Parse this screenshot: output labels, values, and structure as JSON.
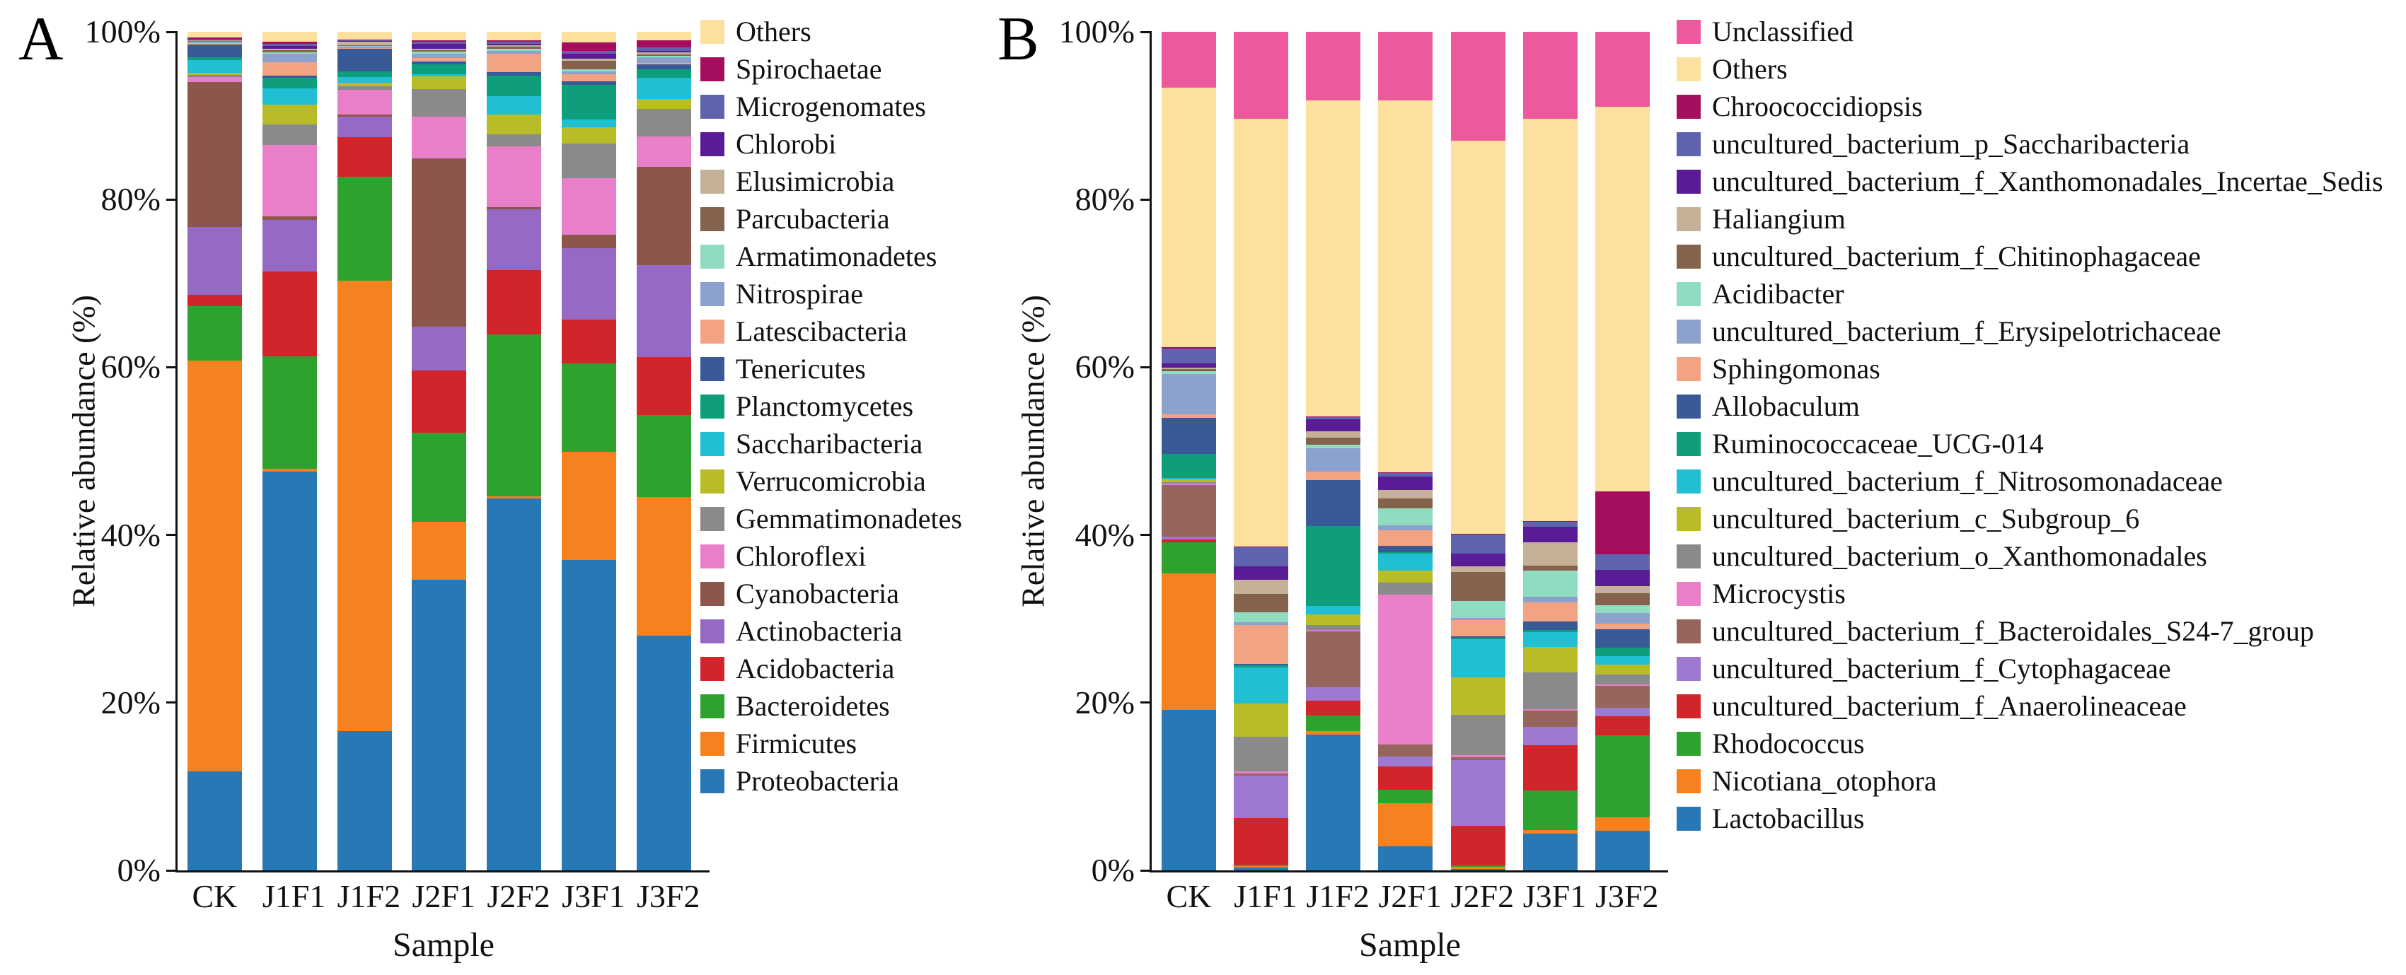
{
  "chart_data": [
    {
      "type": "bar",
      "stacked": true,
      "panel_label": "A",
      "ylabel": "Relative abundance (%)",
      "xlabel": "Sample",
      "ylim": [
        0,
        100
      ],
      "y_ticks": [
        "0%",
        "20%",
        "40%",
        "60%",
        "80%",
        "100%"
      ],
      "grid": false,
      "legend_position": "right",
      "categories": [
        "CK",
        "J1F1",
        "J1F2",
        "J2F1",
        "J2F2",
        "J3F1",
        "J3F2"
      ],
      "series": [
        {
          "name": "Proteobacteria",
          "color": "#2878B5",
          "values": [
            12,
            47.7,
            16.6,
            35,
            44.7,
            37.5,
            28.3
          ]
        },
        {
          "name": "Firmicutes",
          "color": "#F5821F",
          "values": [
            49.7,
            0.3,
            53.8,
            7,
            0.3,
            13,
            16.7
          ]
        },
        {
          "name": "Bacteroidetes",
          "color": "#2EA12E",
          "values": [
            6.6,
            13.5,
            12.4,
            10.7,
            19.4,
            10.7,
            9.9
          ]
        },
        {
          "name": "Acidobacteria",
          "color": "#D2252B",
          "values": [
            1.4,
            10.1,
            4.7,
            7.5,
            7.8,
            5.3,
            7
          ]
        },
        {
          "name": "Actinobacteria",
          "color": "#9669C4",
          "values": [
            8.2,
            6.2,
            2.5,
            5.3,
            7.3,
            8.6,
            11.1
          ]
        },
        {
          "name": "Cyanobacteria",
          "color": "#8C564B",
          "values": [
            17.6,
            0.4,
            0.2,
            20.3,
            0.2,
            1.6,
            11.8
          ]
        },
        {
          "name": "Chloroflexi",
          "color": "#E97FC9",
          "values": [
            0.6,
            8.6,
            3,
            5,
            7.3,
            6.8,
            3.7
          ]
        },
        {
          "name": "Gemmatimonadetes",
          "color": "#8A8A8A",
          "values": [
            0.2,
            2.4,
            0.4,
            3.3,
            1.5,
            4.2,
            3.3
          ]
        },
        {
          "name": "Verrucomicrobia",
          "color": "#B8BC26",
          "values": [
            0.25,
            2.4,
            0.4,
            1.5,
            2.4,
            2,
            1.2
          ]
        },
        {
          "name": "Saccharibacteria",
          "color": "#20BFD4",
          "values": [
            1.6,
            1.9,
            0.7,
            0.3,
            2.2,
            0.9,
            2.6
          ]
        },
        {
          "name": "Planctomycetes",
          "color": "#0F9E7C",
          "values": [
            0.3,
            1.3,
            0.7,
            1.2,
            2.4,
            4.2,
            1
          ]
        },
        {
          "name": "Tenericutes",
          "color": "#3A5A97",
          "values": [
            1.6,
            0.3,
            2.7,
            0.3,
            0.5,
            0.4,
            0.6
          ]
        },
        {
          "name": "Latescibacteria",
          "color": "#F2A384",
          "values": [
            0.1,
            1.6,
            0.1,
            0.5,
            2.2,
            0.9,
            0.2
          ]
        },
        {
          "name": "Nitrospirae",
          "color": "#8CA1CC",
          "values": [
            0.1,
            1,
            0.1,
            0.5,
            0.3,
            0.3,
            0.6
          ]
        },
        {
          "name": "Armatimonadetes",
          "color": "#90DCC0",
          "values": [
            0.1,
            0.2,
            0.1,
            0.2,
            0.3,
            0.3,
            0.2
          ]
        },
        {
          "name": "Parcubacteria",
          "color": "#84624C",
          "values": [
            0.1,
            0.2,
            0.1,
            0.2,
            0.2,
            1,
            0.2
          ]
        },
        {
          "name": "Elusimicrobia",
          "color": "#C4B198",
          "values": [
            0.1,
            0.2,
            0.4,
            0.2,
            0.2,
            0.3,
            0.2
          ]
        },
        {
          "name": "Chlorobi",
          "color": "#5A1C96",
          "values": [
            0.1,
            0.3,
            0.1,
            0.6,
            0.2,
            0.6,
            0.2
          ]
        },
        {
          "name": "Microgenomates",
          "color": "#5F63AE",
          "values": [
            0.1,
            0.3,
            0.1,
            0.2,
            0.2,
            0.3,
            0.4
          ]
        },
        {
          "name": "Spirochaetae",
          "color": "#A50E5D",
          "values": [
            0.1,
            0.2,
            0.1,
            0.2,
            0.2,
            1,
            0.9
          ]
        },
        {
          "name": "Others",
          "color": "#FBE19D",
          "values": [
            0.7,
            1.2,
            0.9,
            1,
            1,
            1.3,
            1
          ]
        }
      ]
    },
    {
      "type": "bar",
      "stacked": true,
      "panel_label": "B",
      "ylabel": "Relative abundance (%)",
      "xlabel": "Sample",
      "ylim": [
        0,
        100
      ],
      "y_ticks": [
        "0%",
        "20%",
        "40%",
        "60%",
        "80%",
        "100%"
      ],
      "grid": false,
      "legend_position": "right",
      "categories": [
        "CK",
        "J1F1",
        "J1F2",
        "J2F1",
        "J2F2",
        "J3F1",
        "J3F2"
      ],
      "series": [
        {
          "name": "Lactobacillus",
          "color": "#2878B5",
          "values": [
            19.3,
            0.3,
            16.3,
            2.9,
            0.2,
            4.4,
            4.8
          ]
        },
        {
          "name": "Nicotiana_otophora",
          "color": "#F5821F",
          "values": [
            16.5,
            0.2,
            0.4,
            5.1,
            0.2,
            0.45,
            1.6
          ]
        },
        {
          "name": "Rhodococcus",
          "color": "#2EA12E",
          "values": [
            3.7,
            0.2,
            1.9,
            1.6,
            0.2,
            4.8,
            9.9
          ]
        },
        {
          "name": "uncultured_bacterium_f_Anaerolineaceae",
          "color": "#D2252B",
          "values": [
            0.4,
            5.6,
            1.75,
            2.8,
            4.7,
            5.4,
            2.3
          ]
        },
        {
          "name": "uncultured_bacterium_f_Cytophagaceae",
          "color": "#9E79D2",
          "values": [
            0.3,
            5.1,
            1.6,
            1.2,
            7.9,
            2.2,
            1
          ]
        },
        {
          "name": "uncultured_bacterium_f_Bacteroidales_S24-7_group",
          "color": "#96655C",
          "values": [
            6.2,
            0.3,
            6.7,
            1.45,
            0.3,
            2,
            2.6
          ]
        },
        {
          "name": "Microcystis",
          "color": "#E97FC9",
          "values": [
            0.2,
            0.2,
            0.2,
            17.9,
            0.3,
            0.2,
            0.2
          ]
        },
        {
          "name": "uncultured_bacterium_o_Xanthomonadales",
          "color": "#8A8A8A",
          "values": [
            0.2,
            4.2,
            0.6,
            1.45,
            4.8,
            4.4,
            1.2
          ]
        },
        {
          "name": "uncultured_bacterium_c_Subgroup_6",
          "color": "#B8BC26",
          "values": [
            0.3,
            4,
            1.3,
            1.45,
            4.5,
            3.1,
            1.2
          ]
        },
        {
          "name": "uncultured_bacterium_f_Nitrosomonadaceae",
          "color": "#20BFD4",
          "values": [
            0.2,
            4.4,
            1,
            2,
            4.5,
            1.75,
            1
          ]
        },
        {
          "name": "Ruminococcaceae_UCG-014",
          "color": "#0F9E7C",
          "values": [
            2.9,
            0.2,
            9.6,
            0.2,
            0.2,
            0.3,
            1
          ]
        },
        {
          "name": "Allobaculum",
          "color": "#3A5A97",
          "values": [
            4.3,
            0.2,
            5.5,
            0.7,
            0.2,
            1,
            2.2
          ]
        },
        {
          "name": "Sphingomonas",
          "color": "#F2A384",
          "values": [
            0.4,
            4.7,
            1,
            1.9,
            1.9,
            2.3,
            0.7
          ]
        },
        {
          "name": "uncultured_bacterium_f_Erysipelotrichaceae",
          "color": "#8CA1CC",
          "values": [
            4.9,
            0.3,
            2.8,
            0.6,
            0.3,
            0.7,
            1.3
          ]
        },
        {
          "name": "Acidibacter",
          "color": "#90DCC0",
          "values": [
            0.3,
            1.2,
            0.4,
            2,
            2,
            3.1,
            0.9
          ]
        },
        {
          "name": "uncultured_bacterium_f_Chitinophagaceae",
          "color": "#84624C",
          "values": [
            0.3,
            2.2,
            0.9,
            1.2,
            3.5,
            0.6,
            1.45
          ]
        },
        {
          "name": "Haliangium",
          "color": "#C4B198",
          "values": [
            0.2,
            1.75,
            0.7,
            1,
            0.6,
            2.8,
            0.9
          ]
        },
        {
          "name": "uncultured_bacterium_f_Xanthomonadales_Incertae_Sedis",
          "color": "#5A1C96",
          "values": [
            0.5,
            1.6,
            1.45,
            1.6,
            1.6,
            1.9,
            1.9
          ]
        },
        {
          "name": "uncultured_bacterium_p_Saccharibacteria",
          "color": "#5F63AE",
          "values": [
            1.8,
            2.3,
            0.3,
            0.4,
            2.2,
            0.6,
            1.9
          ]
        },
        {
          "name": "Chroococcidiopsis",
          "color": "#A50E5D",
          "values": [
            0.1,
            0.1,
            0.1,
            0.1,
            0.1,
            0.1,
            7.6
          ]
        },
        {
          "name": "Others",
          "color": "#FBE19D",
          "values": [
            31.3,
            51.5,
            37.9,
            44.4,
            47,
            48.4,
            46.3
          ]
        },
        {
          "name": "Unclassified",
          "color": "#EC5A9D",
          "values": [
            6.7,
            10.5,
            8.2,
            8.2,
            13,
            10.5,
            9
          ]
        }
      ]
    }
  ]
}
